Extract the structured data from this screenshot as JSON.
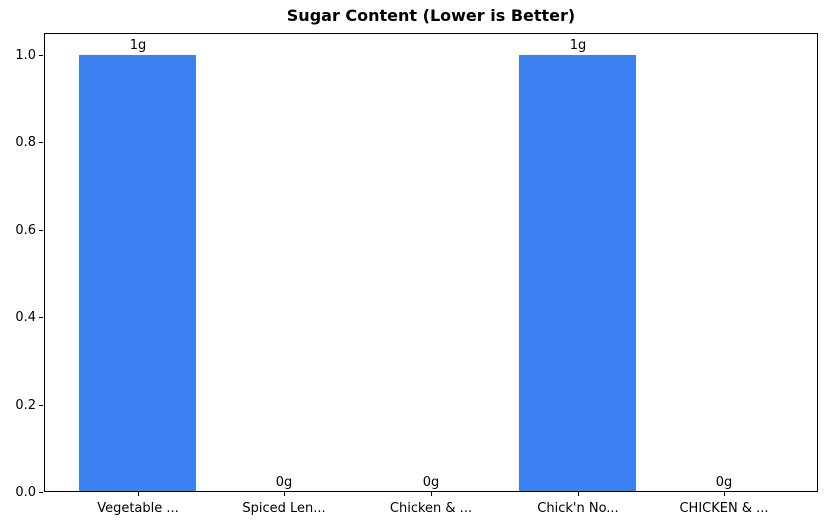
{
  "chart_data": {
    "type": "bar",
    "title": "Sugar Content (Lower is Better)",
    "categories": [
      "Vegetable ...",
      "Spiced Len...",
      "Chicken & ...",
      "Chick'n No...",
      "CHICKEN & ..."
    ],
    "values": [
      1,
      0,
      0,
      1,
      0
    ],
    "value_labels": [
      "1g",
      "0g",
      "0g",
      "1g",
      "0g"
    ],
    "ytick_values": [
      0.0,
      0.2,
      0.4,
      0.6,
      0.8,
      1.0
    ],
    "ytick_labels": [
      "0.0",
      "0.2",
      "0.4",
      "0.6",
      "0.8",
      "1.0"
    ],
    "ylim": [
      0,
      1.05
    ],
    "xlabel": "",
    "ylabel": "",
    "grid": false,
    "legend": false,
    "bar_color": "#3D80F2",
    "text_color": "#000000",
    "spine_color": "#000000",
    "background_color": "#FFFFFF"
  }
}
